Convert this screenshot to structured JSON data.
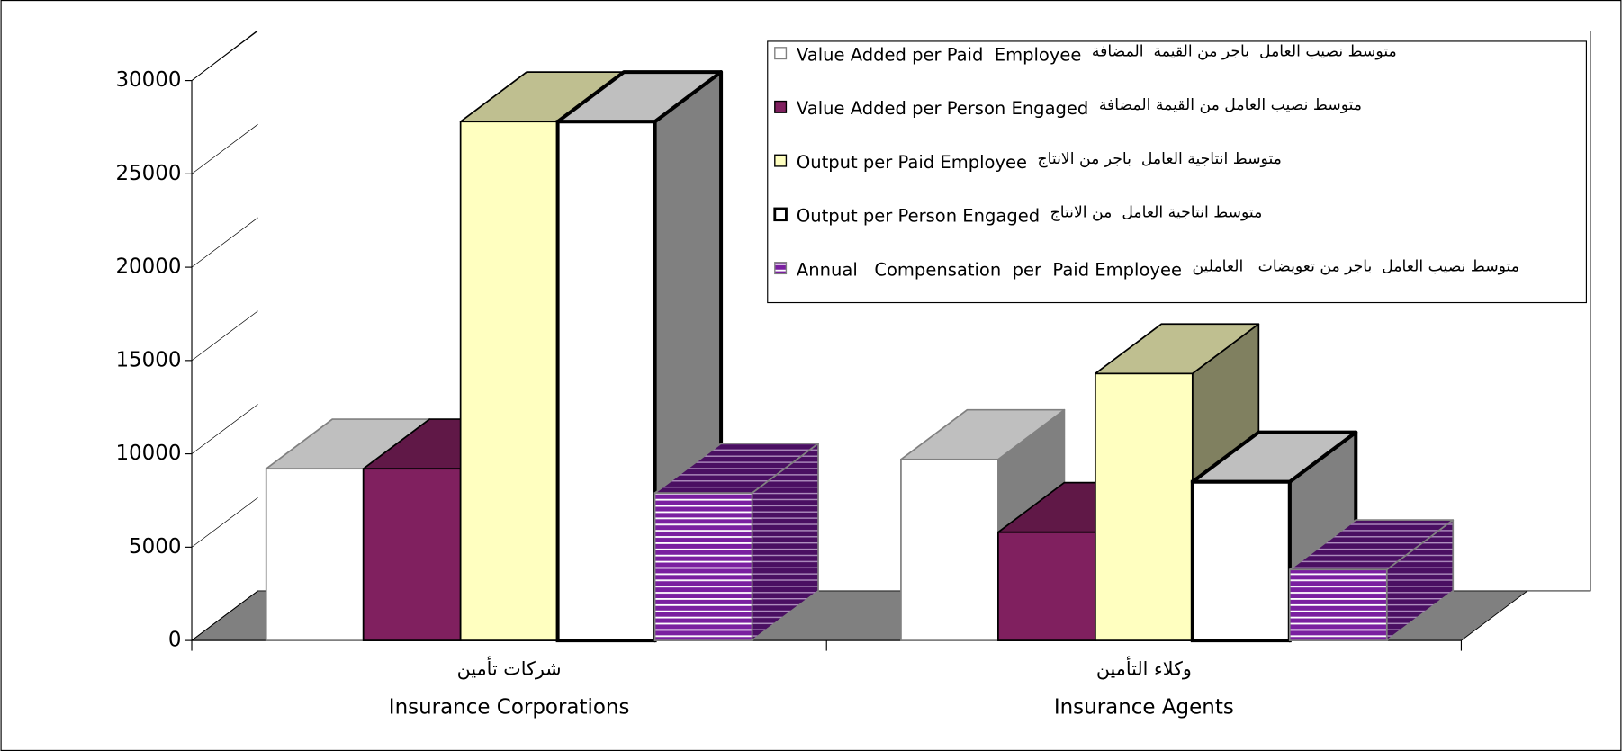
{
  "chart_data": {
    "type": "bar3d",
    "categories": [
      "Insurance Corporations",
      "Insurance Agents"
    ],
    "categories_ar": [
      "شركات تأمين",
      "وكلاء التأمين"
    ],
    "ylim": [
      0,
      30000
    ],
    "yticks": [
      0,
      5000,
      10000,
      15000,
      20000,
      25000,
      30000
    ],
    "series": [
      {
        "name": "Value Added per Paid  Employee",
        "name_ar": "متوسط نصيب العامل  باجر من القيمة  المضافة",
        "color": "#ffffff",
        "border": "#808080",
        "values": [
          9200,
          9700
        ]
      },
      {
        "name": "Value Added per Person Engaged",
        "name_ar": "متوسط نصيب العامل من القيمة المضافة",
        "color": "#80205f",
        "border": "#000000",
        "values": [
          9200,
          5800
        ]
      },
      {
        "name": "Output per Paid Employee",
        "name_ar": "متوسط انتاجية العامل  باجر من الانتاج",
        "color": "#ffffc0",
        "border": "#000000",
        "values": [
          27800,
          14300
        ]
      },
      {
        "name": "Output per Person Engaged",
        "name_ar": "متوسط انتاجية العامل  من الانتاج",
        "color": "#ffffff",
        "border": "#000000",
        "border_width": 3.5,
        "values": [
          27800,
          8500
        ]
      },
      {
        "name": "Annual   Compensation  per  Paid Employee",
        "name_ar": "متوسط نصيب العامل  باجر من تعويضات   العاملين",
        "color": "#7a1fa0",
        "border": "#808080",
        "pattern": "stripes",
        "values": [
          7900,
          3800
        ]
      }
    ]
  }
}
